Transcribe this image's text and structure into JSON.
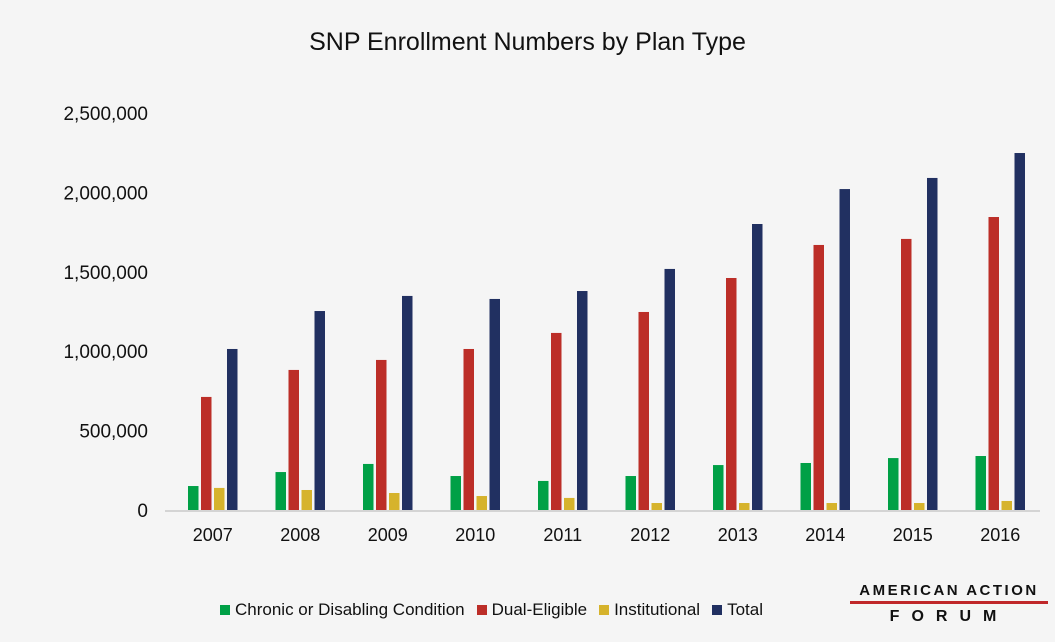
{
  "chart_data": {
    "type": "bar",
    "title": "SNP Enrollment Numbers by Plan Type",
    "xlabel": "",
    "ylabel": "",
    "ylim": [
      0,
      2500000
    ],
    "yticks": [
      0,
      500000,
      1000000,
      1500000,
      2000000,
      2500000
    ],
    "ytick_labels": [
      "0",
      "500,000",
      "1,000,000",
      "1,500,000",
      "2,000,000",
      "2,500,000"
    ],
    "grid": false,
    "legend_position": "bottom",
    "categories": [
      "2007",
      "2008",
      "2009",
      "2010",
      "2011",
      "2012",
      "2013",
      "2014",
      "2015",
      "2016"
    ],
    "series": [
      {
        "name": "Chronic or Disabling Condition",
        "color": "#00a046",
        "values": [
          151000,
          239000,
          290000,
          214000,
          183000,
          214000,
          283000,
          296000,
          327000,
          340000
        ]
      },
      {
        "name": "Dual-Eligible",
        "color": "#bc2e28",
        "values": [
          712000,
          882000,
          945000,
          1014000,
          1115000,
          1247000,
          1461000,
          1669000,
          1707000,
          1845000
        ]
      },
      {
        "name": "Institutional",
        "color": "#d6b32c",
        "values": [
          139000,
          126000,
          107000,
          88000,
          76000,
          44000,
          44000,
          44000,
          44000,
          57000
        ]
      },
      {
        "name": "Total",
        "color": "#213061",
        "values": [
          1014000,
          1253000,
          1348000,
          1329000,
          1379000,
          1518000,
          1801000,
          2021000,
          2091000,
          2248000
        ]
      }
    ]
  },
  "logo": {
    "line1": "AMERICAN ACTION",
    "line2": "FORUM",
    "accent": "#c0282a"
  }
}
